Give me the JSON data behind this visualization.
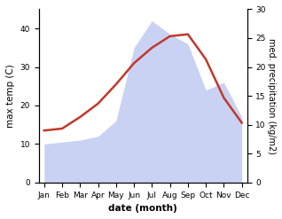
{
  "months": [
    "Jan",
    "Feb",
    "Mar",
    "Apr",
    "May",
    "Jun",
    "Jul",
    "Aug",
    "Sep",
    "Oct",
    "Nov",
    "Dec"
  ],
  "temp": [
    13.5,
    14.0,
    17.0,
    20.5,
    25.5,
    31.0,
    35.0,
    38.0,
    38.5,
    32.0,
    22.0,
    15.5
  ],
  "precip": [
    10.0,
    10.5,
    11.0,
    12.0,
    16.0,
    35.0,
    42.0,
    38.5,
    36.0,
    24.0,
    26.0,
    17.0
  ],
  "temp_color": "#c0392b",
  "precip_fill_color": "#b8c4f0",
  "precip_fill_alpha": 0.75,
  "ylabel_left": "max temp (C)",
  "ylabel_right": "med. precipitation (kg/m2)",
  "xlabel": "date (month)",
  "ylim_left": [
    0,
    45
  ],
  "ylim_right": [
    0,
    30
  ],
  "yticks_left": [
    0,
    10,
    20,
    30,
    40
  ],
  "yticks_right": [
    0,
    5,
    10,
    15,
    20,
    25,
    30
  ],
  "background_color": "#ffffff",
  "label_fontsize": 7.5,
  "tick_fontsize": 6.5
}
